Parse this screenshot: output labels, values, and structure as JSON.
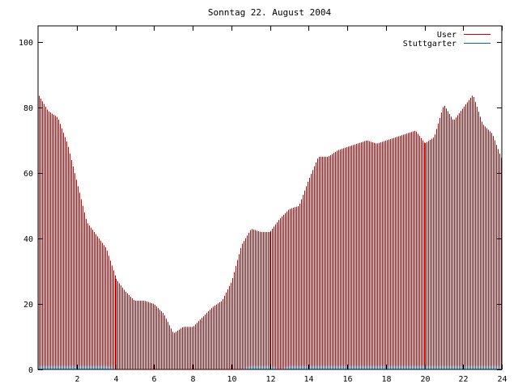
{
  "chart_data": {
    "type": "bar",
    "title": "Sonntag 22. August 2004",
    "xlabel": "",
    "ylabel": "",
    "xlim": [
      0,
      24
    ],
    "ylim": [
      0,
      105
    ],
    "x_ticks": [
      2,
      4,
      6,
      8,
      10,
      12,
      14,
      16,
      18,
      20,
      22,
      24
    ],
    "y_ticks": [
      0,
      20,
      40,
      60,
      80,
      100
    ],
    "grid": false,
    "legend": "top-right",
    "hour_anchors": [
      0,
      0.5,
      1,
      1.5,
      2,
      2.5,
      3,
      3.5,
      4,
      4.5,
      5,
      5.5,
      6,
      6.5,
      7,
      7.5,
      8,
      8.5,
      9,
      9.5,
      10,
      10.5,
      11,
      11.5,
      12,
      12.5,
      13,
      13.5,
      14,
      14.5,
      15,
      15.5,
      16,
      16.5,
      17,
      17.5,
      18,
      18.5,
      19,
      19.5,
      20,
      20.5,
      21,
      21.5,
      22,
      22.5,
      23,
      23.5,
      24
    ],
    "series": [
      {
        "name": "User",
        "color": "#cc0000",
        "bins_per_hour": 12,
        "anchor_values": [
          84,
          79,
          77,
          69,
          57,
          45,
          41,
          37,
          28,
          24,
          21,
          21,
          20,
          17,
          11,
          13,
          13,
          16,
          19,
          21,
          27,
          38,
          43,
          42,
          42,
          46,
          49,
          50,
          58,
          65,
          65,
          67,
          68,
          69,
          70,
          69,
          70,
          71,
          72,
          73,
          69,
          71,
          81,
          76,
          80,
          84,
          75,
          72,
          64
        ]
      },
      {
        "name": "Stuttgarter",
        "color": "#0066cc",
        "bins_per_hour": 12,
        "anchor_values": [
          1,
          1,
          1,
          1,
          1,
          1,
          1,
          1,
          0,
          0,
          0,
          0,
          0,
          0,
          0,
          0,
          0,
          0,
          0,
          0,
          0,
          0,
          1,
          1,
          1,
          0,
          1,
          1,
          1,
          1,
          1,
          1,
          1,
          1,
          1,
          1,
          1,
          1,
          1,
          1,
          1,
          1,
          1,
          1,
          1,
          1,
          1,
          1,
          1
        ]
      }
    ]
  }
}
